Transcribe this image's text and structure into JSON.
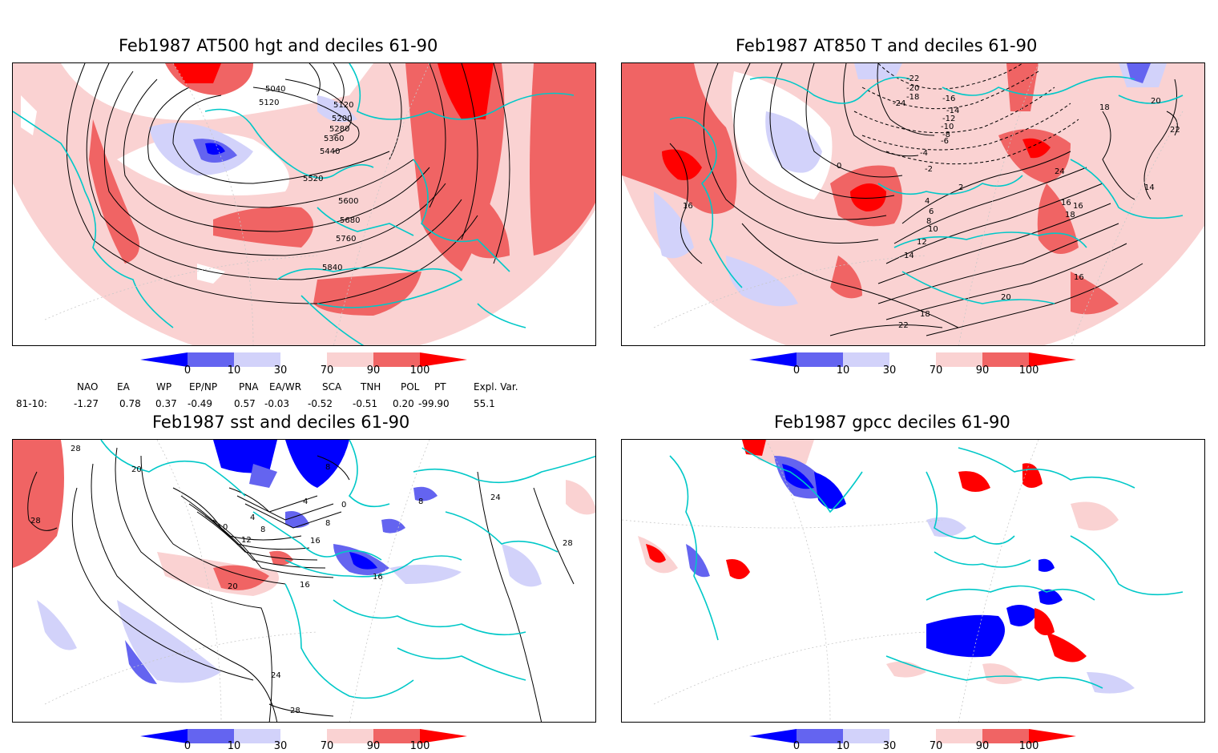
{
  "panels": [
    {
      "id": "tl",
      "title": "Feb1987 AT500 hgt and deciles 61-90",
      "contour_labels": [
        "5040",
        "5120",
        "5120",
        "5200",
        "5280",
        "5360",
        "5440",
        "5520",
        "5600",
        "5680",
        "5760",
        "5840"
      ]
    },
    {
      "id": "tr",
      "title": "Feb1987 AT850 T and deciles 61-90",
      "contour_labels": [
        "-22",
        "-20",
        "-18",
        "-16",
        "-14",
        "-12",
        "-24",
        "-10",
        "-8",
        "-6",
        "-4",
        "-2",
        "0",
        "2",
        "4",
        "6",
        "8",
        "10",
        "12",
        "14",
        "16",
        "18",
        "20",
        "22",
        "24",
        "14",
        "16",
        "16",
        "18",
        "16",
        "18",
        "20",
        "22",
        "20",
        "18",
        "20",
        "22"
      ]
    },
    {
      "id": "bl",
      "title": "Feb1987 sst and deciles 61-90",
      "contour_labels": [
        "28",
        "28",
        "20",
        "0",
        "4",
        "8",
        "12",
        "16",
        "20",
        "16",
        "16",
        "24",
        "28",
        "24",
        "28",
        "8",
        "8",
        "8",
        "4",
        "0"
      ]
    },
    {
      "id": "br",
      "title": "Feb1987 gpcc deciles 61-90",
      "contour_labels": []
    }
  ],
  "colorbar": {
    "labels": [
      "0",
      "10",
      "30",
      "70",
      "90",
      "100"
    ],
    "colors": [
      "#0000ff",
      "#6464f0",
      "#d2d2fa",
      "#ffffff",
      "#fad2d2",
      "#f06464",
      "#ff0000"
    ]
  },
  "indices": {
    "headers": [
      "NAO",
      "EA",
      "WP",
      "EP/NP",
      "PNA",
      "EA/WR",
      "SCA",
      "TNH",
      "POL",
      "PT",
      "Expl. Var."
    ],
    "row_label": "81-10:",
    "values": [
      "-1.27",
      "0.78",
      "0.37",
      "-0.49",
      "0.57",
      "-0.03",
      "-0.52",
      "-0.51",
      "0.20",
      "-99.90",
      "55.1"
    ]
  }
}
